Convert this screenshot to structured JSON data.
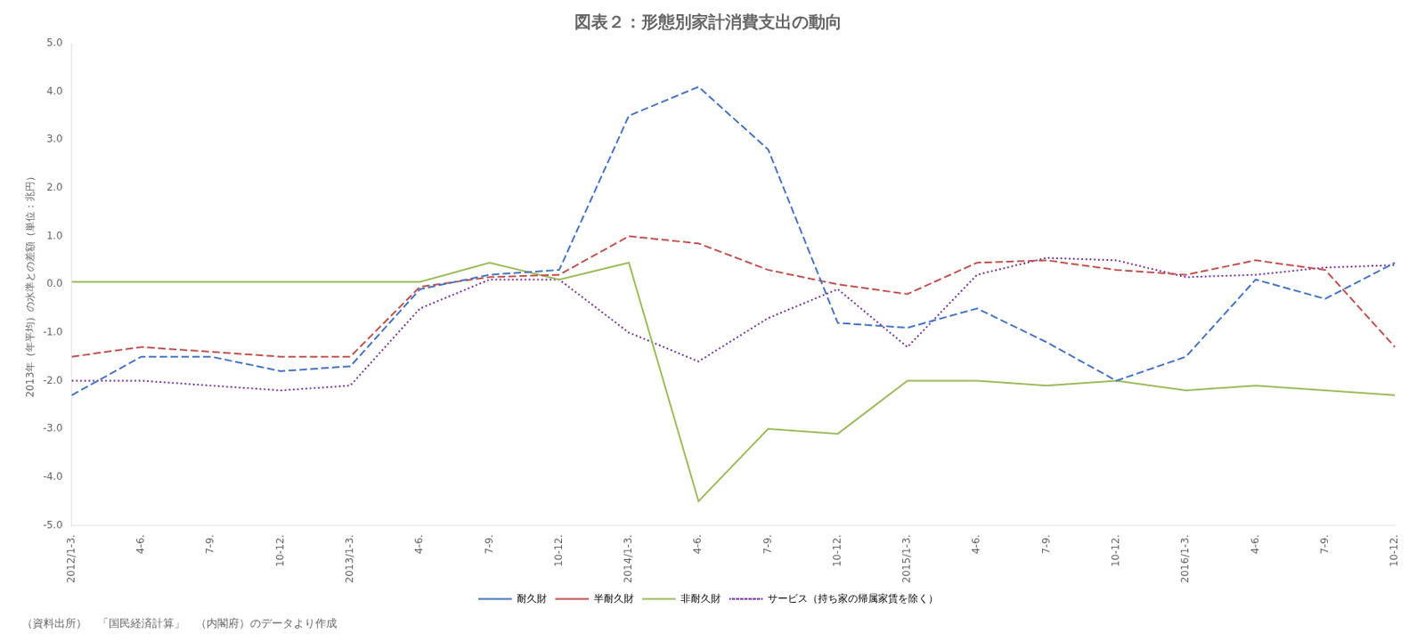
{
  "chart_data": {
    "type": "line",
    "title": "図表２：形態別家計消費支出の動向",
    "ylabel": "2013年（年平均）の水準との差額（単位：兆円）",
    "annotations": [
      "（資料出所）　「国民経済計算」　（内閣府）のデータより作成"
    ],
    "categories": [
      "2012/1-3.",
      "4-6.",
      "7-9.",
      "10-12.",
      "2013/1-3.",
      "4-6.",
      "7-9.",
      "10-12.",
      "2014/1-3.",
      "4-6.",
      "7-9.",
      "10-12.",
      "2015/1-3.",
      "4-6.",
      "7-9.",
      "10-12.",
      "2016/1-3.",
      "4-6.",
      "7-9.",
      "10-12."
    ],
    "series": [
      {
        "name": "耐久財",
        "color": "#4472C4",
        "line_style": "dashed",
        "values": [
          -2.3,
          -1.5,
          -1.5,
          -1.8,
          -1.7,
          -0.1,
          0.2,
          0.3,
          3.5,
          4.1,
          2.8,
          -0.8,
          -0.9,
          -0.5,
          -1.2,
          -2.0,
          -1.5,
          0.1,
          -0.3,
          0.45
        ]
      },
      {
        "name": "半耐久財",
        "color": "#C0504D",
        "line_style": "dashed",
        "values": [
          -1.5,
          -1.3,
          -1.4,
          -1.5,
          -1.5,
          -0.05,
          0.15,
          0.2,
          1.0,
          0.85,
          0.3,
          0.0,
          -0.2,
          0.45,
          0.5,
          0.3,
          0.2,
          0.5,
          0.3,
          -1.3
        ]
      },
      {
        "name": "非耐久財",
        "color": "#9BBB59",
        "line_style": "solid",
        "values": [
          0.05,
          0.05,
          0.05,
          0.05,
          0.05,
          0.05,
          0.45,
          0.1,
          0.45,
          -4.5,
          -3.0,
          -3.1,
          -2.0,
          -2.0,
          -2.1,
          -2.0,
          -2.2,
          -2.1,
          -2.2,
          -2.3
        ]
      },
      {
        "name": "サービス（持ち家の帰属家賃を除く）",
        "color": "#7030A0",
        "line_style": "dotted",
        "values": [
          -2.0,
          -2.0,
          -2.1,
          -2.2,
          -2.1,
          -0.5,
          0.1,
          0.1,
          -1.0,
          -1.6,
          -0.7,
          -0.1,
          -1.3,
          0.2,
          0.55,
          0.5,
          0.15,
          0.2,
          0.35,
          0.4
        ]
      }
    ],
    "ylim": [
      -5.0,
      5.0
    ],
    "yticks": [
      {
        "value": -5,
        "label": "-5.0"
      },
      {
        "value": -4,
        "label": "-4.0"
      },
      {
        "value": -3,
        "label": "-3.0"
      },
      {
        "value": -2,
        "label": "-2.0"
      },
      {
        "value": -1,
        "label": "-1.0"
      },
      {
        "value": 0,
        "label": "0.0"
      },
      {
        "value": 1,
        "label": "1.0"
      },
      {
        "value": 2,
        "label": "2.0"
      },
      {
        "value": 3,
        "label": "3.0"
      },
      {
        "value": 4,
        "label": "4.0"
      },
      {
        "value": 5,
        "label": "5.0"
      }
    ],
    "grid": false,
    "legend": "bottom"
  }
}
